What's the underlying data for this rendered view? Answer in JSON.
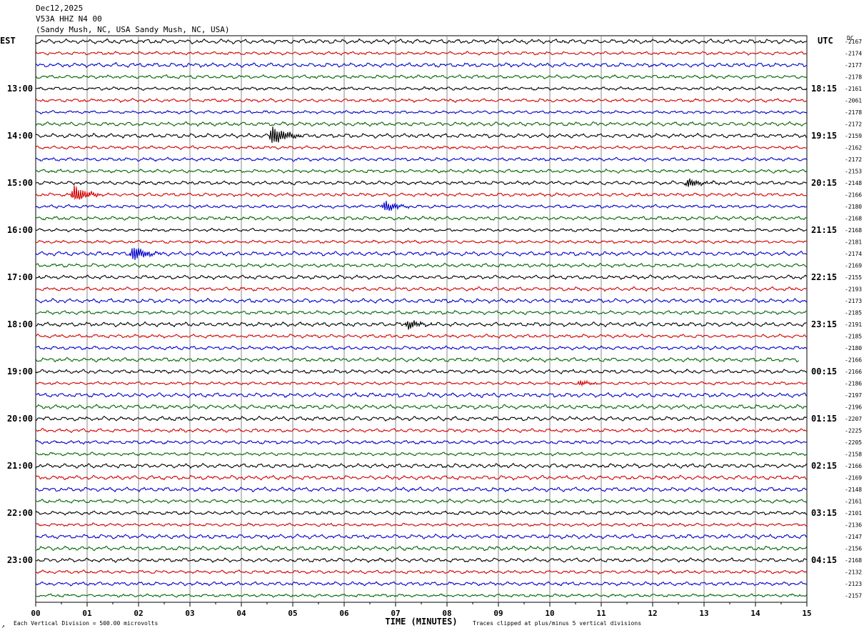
{
  "header": {
    "date": "Dec12,2025",
    "station": "V53A HHZ N4 00",
    "location": "(Sandy Mush, NC, USA Sandy Mush, NC, USA)"
  },
  "labels": {
    "left_timezone": "EST",
    "right_timezone": "UTC",
    "dc_header": "DC",
    "xlabel": "TIME (MINUTES)",
    "footer_scale": "Each Vertical Division =  500.00 microvolts",
    "footer_clip": "Traces clipped at plus/minus 5 vertical divisions",
    "corner_mark": "↗"
  },
  "chart_data": {
    "type": "line",
    "title": "V53A HHZ N4 00",
    "xlabel": "TIME (MINUTES)",
    "ylabel": "",
    "xlim": [
      0,
      15
    ],
    "x_ticks": [
      "00",
      "01",
      "02",
      "03",
      "04",
      "05",
      "06",
      "07",
      "08",
      "09",
      "10",
      "11",
      "12",
      "13",
      "14",
      "15"
    ],
    "left_time_labels": [
      "13:00",
      "14:00",
      "15:00",
      "16:00",
      "17:00",
      "18:00",
      "19:00",
      "20:00",
      "21:00",
      "22:00",
      "23:00"
    ],
    "right_time_labels": [
      "18:15",
      "19:15",
      "20:15",
      "21:15",
      "22:15",
      "23:15",
      "00:15",
      "01:15",
      "02:15",
      "03:15",
      "04:15"
    ],
    "trace_colors": [
      "#000000",
      "#d40000",
      "#0000cc",
      "#006600"
    ],
    "dc_offsets": [
      "-2167",
      "-2174",
      "-2177",
      "-2178",
      "-2161",
      "-2061",
      "-2178",
      "-2172",
      "-2159",
      "-2162",
      "-2172",
      "-2153",
      "-2148",
      "-2166",
      "-2180",
      "-2168",
      "-2168",
      "-2181",
      "-2174",
      "-2169",
      "-2155",
      "-2193",
      "-2173",
      "-2185",
      "-2191",
      "-2185",
      "-2180",
      "-2166",
      "-2166",
      "-2186",
      "-2197",
      "-2196",
      "-2207",
      "-2225",
      "-2205",
      "-2158",
      "-2166",
      "-2169",
      "-2148",
      "-2161",
      "-2101",
      "-2136",
      "-2147",
      "-2156",
      "-2168",
      "-2132",
      "-2123",
      "-2157"
    ],
    "events": [
      {
        "trace": 8,
        "minute": 4.6,
        "amplitude": 1.0
      },
      {
        "trace": 12,
        "minute": 12.7,
        "amplitude": 0.5
      },
      {
        "trace": 13,
        "minute": 0.75,
        "amplitude": 0.9
      },
      {
        "trace": 14,
        "minute": 6.8,
        "amplitude": 0.6
      },
      {
        "trace": 18,
        "minute": 1.9,
        "amplitude": 0.8
      },
      {
        "trace": 24,
        "minute": 7.25,
        "amplitude": 0.5
      },
      {
        "trace": 29,
        "minute": 10.6,
        "amplitude": 0.3
      }
    ]
  }
}
